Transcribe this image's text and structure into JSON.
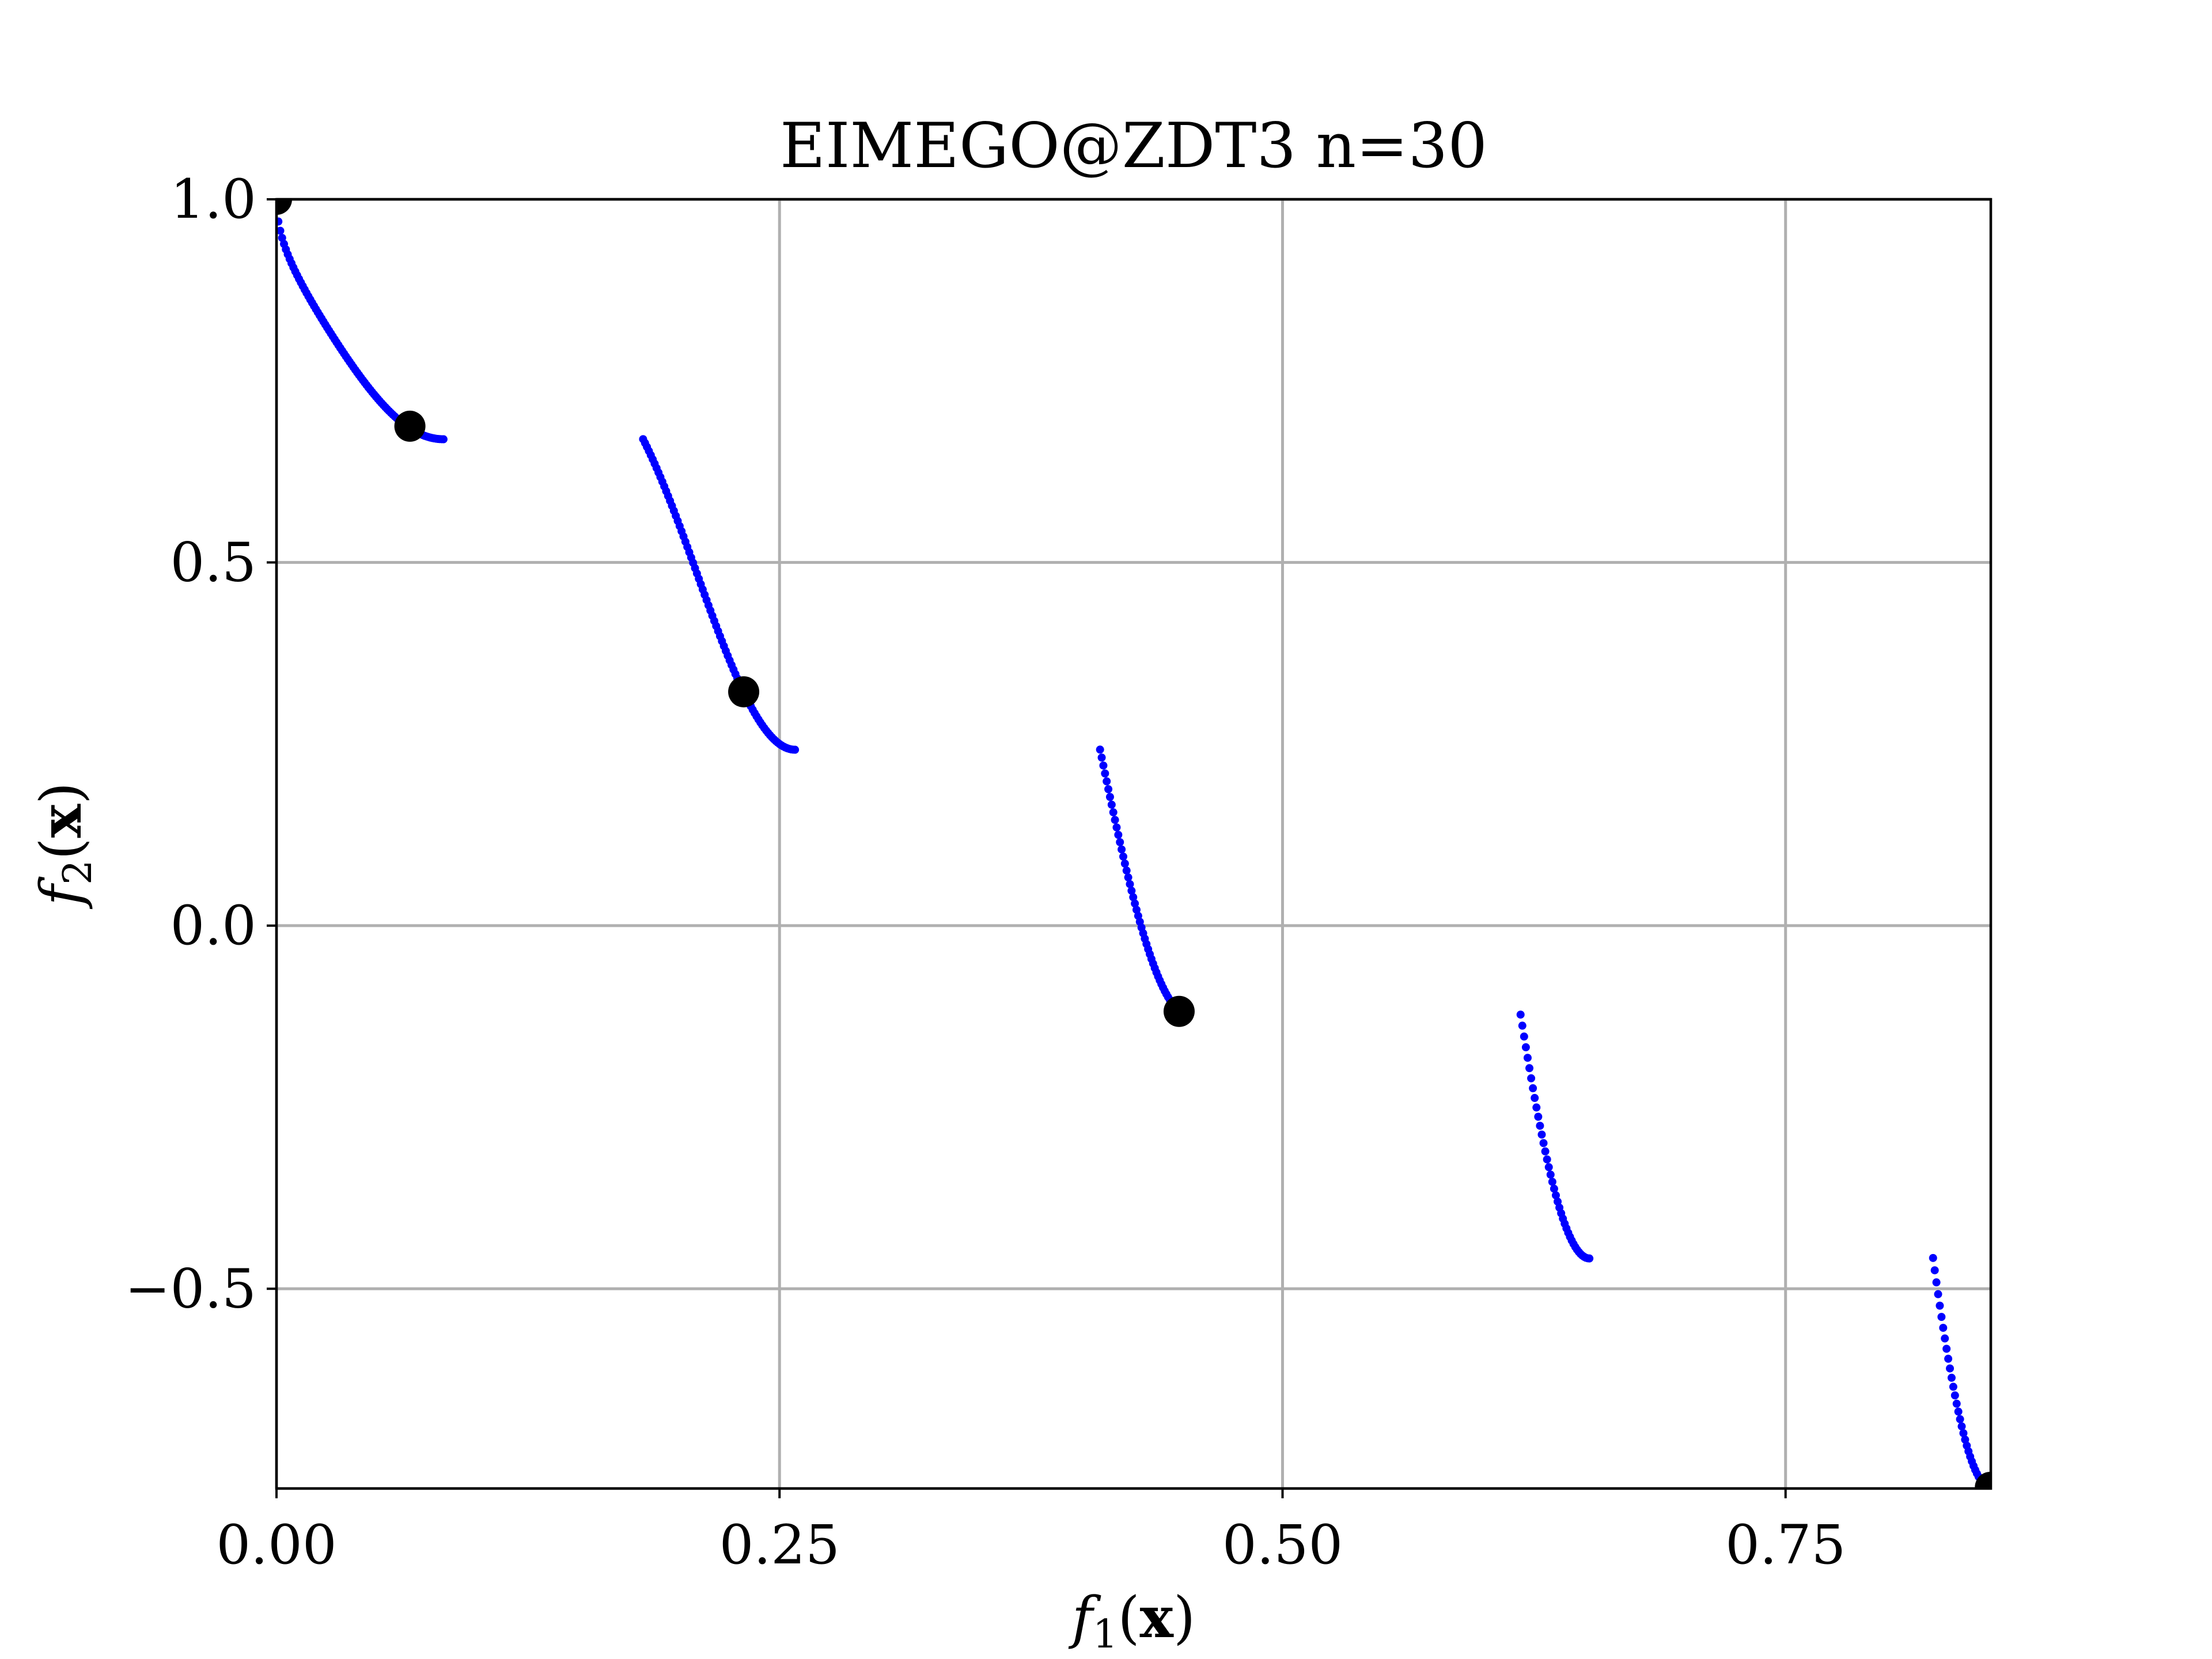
{
  "chart_data": {
    "type": "scatter",
    "title": "EIMEGO@ZDT3 n=30",
    "xlabel": "f1(x)",
    "ylabel": "f2(x)",
    "xlim": [
      0.0,
      0.852
    ],
    "ylim": [
      -0.775,
      1.0
    ],
    "xticks": [
      {
        "value": 0.0,
        "label": "0.00"
      },
      {
        "value": 0.25,
        "label": "0.25"
      },
      {
        "value": 0.5,
        "label": "0.50"
      },
      {
        "value": 0.75,
        "label": "0.75"
      }
    ],
    "yticks": [
      {
        "value": 1.0,
        "label": "1.0"
      },
      {
        "value": 0.5,
        "label": "0.5"
      },
      {
        "value": 0.0,
        "label": "0.0"
      },
      {
        "value": -0.5,
        "label": "−0.5"
      }
    ],
    "grid": true,
    "legend": "none",
    "series": [
      {
        "role": "pareto-front",
        "color": "#0000ff",
        "marker": "small-dot",
        "segments": [
          {
            "x_start": 0.0,
            "x_end": 0.083,
            "samples": 90
          },
          {
            "x_start": 0.1822,
            "x_end": 0.2577,
            "samples": 80
          },
          {
            "x_start": 0.4093,
            "x_end": 0.4538,
            "samples": 55
          },
          {
            "x_start": 0.6183,
            "x_end": 0.6525,
            "samples": 40
          },
          {
            "x_start": 0.8233,
            "x_end": 0.8518,
            "samples": 35
          }
        ]
      },
      {
        "role": "selected-points",
        "color": "#000000",
        "marker": "large-dot",
        "points": [
          {
            "x": 0.0,
            "y": 1.0
          },
          {
            "x": 0.0663,
            "y": 0.6876
          },
          {
            "x": 0.2322,
            "y": 0.3219
          },
          {
            "x": 0.4486,
            "y": -0.1181
          },
          {
            "x": 0.8518,
            "y": -0.7734
          }
        ]
      }
    ]
  }
}
